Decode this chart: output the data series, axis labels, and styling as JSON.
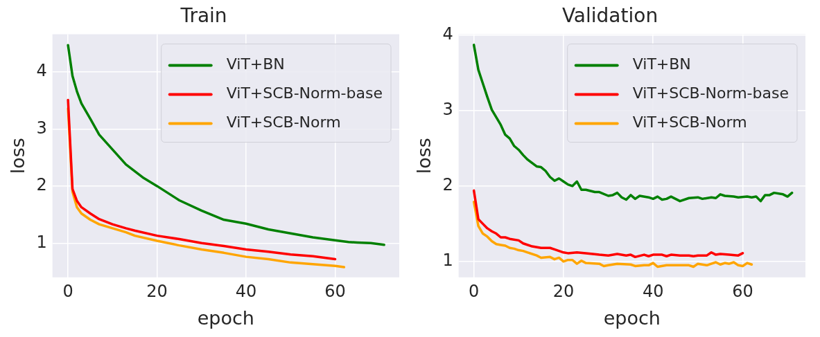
{
  "chart_data": [
    {
      "type": "line",
      "title": "Train",
      "xlabel": "epoch",
      "ylabel": "loss",
      "xlim": [
        -3.5,
        74.4
      ],
      "ylim": [
        0.4,
        4.66
      ],
      "xticks": [
        0,
        20,
        40,
        60
      ],
      "yticks": [
        1,
        2,
        3,
        4
      ],
      "grid": true,
      "legend": "top right",
      "marker": "none",
      "line_style": "solid",
      "series": [
        {
          "name": "ViT+BN",
          "color": "#008000",
          "x": [
            0,
            1,
            2,
            3,
            5,
            7,
            10,
            13,
            17,
            20,
            25,
            30,
            35,
            40,
            45,
            50,
            55,
            60,
            63,
            65,
            68,
            71
          ],
          "values": [
            4.47,
            3.93,
            3.66,
            3.45,
            3.18,
            2.9,
            2.64,
            2.38,
            2.14,
            2.0,
            1.75,
            1.57,
            1.41,
            1.34,
            1.24,
            1.17,
            1.1,
            1.05,
            1.02,
            1.01,
            1.0,
            0.97
          ]
        },
        {
          "name": "ViT+SCB-Norm-base",
          "color": "#ff0000",
          "x": [
            0,
            1,
            2,
            3,
            5,
            7,
            10,
            13,
            15,
            20,
            25,
            30,
            35,
            40,
            45,
            50,
            55,
            60
          ],
          "values": [
            3.51,
            1.95,
            1.74,
            1.63,
            1.52,
            1.42,
            1.33,
            1.26,
            1.22,
            1.13,
            1.07,
            1.0,
            0.95,
            0.89,
            0.85,
            0.8,
            0.77,
            0.72
          ]
        },
        {
          "name": "ViT+SCB-Norm",
          "color": "#ffa500",
          "x": [
            0,
            1,
            2,
            3,
            5,
            7,
            10,
            13,
            15,
            20,
            25,
            30,
            35,
            40,
            45,
            50,
            55,
            60,
            62
          ],
          "values": [
            3.36,
            1.9,
            1.63,
            1.52,
            1.41,
            1.33,
            1.26,
            1.19,
            1.13,
            1.04,
            0.96,
            0.89,
            0.83,
            0.76,
            0.72,
            0.66,
            0.63,
            0.6,
            0.58
          ]
        }
      ]
    },
    {
      "type": "line",
      "title": "Validation",
      "xlabel": "epoch",
      "ylabel": "loss",
      "xlim": [
        -3.4,
        74
      ],
      "ylim": [
        0.79,
        4.01
      ],
      "xticks": [
        0,
        20,
        40,
        60
      ],
      "yticks": [
        1,
        2,
        3,
        4
      ],
      "grid": true,
      "legend": "top right",
      "marker": "none",
      "line_style": "solid",
      "series": [
        {
          "name": "ViT+BN",
          "color": "#008000",
          "x": [
            0,
            1,
            2,
            3,
            4,
            6,
            7,
            8,
            9,
            10,
            11,
            12,
            14,
            15,
            16,
            17,
            18,
            19,
            20,
            21,
            22,
            23,
            24,
            25,
            27,
            28,
            30,
            31,
            32,
            33,
            34,
            35,
            36,
            37,
            39,
            40,
            41,
            42,
            43,
            44,
            46,
            48,
            50,
            51,
            53,
            54,
            55,
            56,
            58,
            59,
            61,
            62,
            63,
            64,
            65,
            66,
            67,
            69,
            70,
            71
          ],
          "values": [
            3.87,
            3.54,
            3.36,
            3.18,
            3.01,
            2.81,
            2.68,
            2.63,
            2.53,
            2.48,
            2.41,
            2.35,
            2.26,
            2.25,
            2.2,
            2.12,
            2.07,
            2.1,
            2.06,
            2.02,
            2.0,
            2.06,
            1.95,
            1.95,
            1.92,
            1.92,
            1.87,
            1.88,
            1.91,
            1.85,
            1.82,
            1.88,
            1.83,
            1.87,
            1.85,
            1.83,
            1.86,
            1.82,
            1.83,
            1.86,
            1.8,
            1.84,
            1.85,
            1.83,
            1.85,
            1.84,
            1.89,
            1.87,
            1.86,
            1.85,
            1.86,
            1.85,
            1.86,
            1.8,
            1.88,
            1.88,
            1.91,
            1.89,
            1.86,
            1.91
          ]
        },
        {
          "name": "ViT+SCB-Norm-base",
          "color": "#ff0000",
          "x": [
            0,
            1,
            2,
            3,
            4,
            5,
            6,
            7,
            8,
            10,
            11,
            13,
            15,
            17,
            18,
            20,
            21,
            23,
            25,
            28,
            30,
            32,
            34,
            35,
            36,
            38,
            39,
            40,
            42,
            43,
            44,
            46,
            48,
            49,
            50,
            52,
            53,
            54,
            55,
            57,
            59,
            60
          ],
          "values": [
            1.94,
            1.56,
            1.5,
            1.44,
            1.4,
            1.37,
            1.32,
            1.32,
            1.3,
            1.28,
            1.24,
            1.2,
            1.18,
            1.18,
            1.16,
            1.12,
            1.11,
            1.12,
            1.11,
            1.09,
            1.08,
            1.1,
            1.08,
            1.09,
            1.06,
            1.09,
            1.07,
            1.09,
            1.09,
            1.07,
            1.09,
            1.08,
            1.08,
            1.07,
            1.08,
            1.08,
            1.12,
            1.09,
            1.1,
            1.09,
            1.08,
            1.11
          ]
        },
        {
          "name": "ViT+SCB-Norm",
          "color": "#ffa500",
          "x": [
            0,
            1,
            2,
            3,
            4,
            5,
            6,
            7,
            8,
            9,
            10,
            11,
            12,
            14,
            15,
            17,
            18,
            19,
            20,
            21,
            22,
            23,
            24,
            25,
            28,
            29,
            30,
            32,
            35,
            36,
            38,
            39,
            40,
            41,
            43,
            45,
            48,
            49,
            50,
            52,
            53,
            54,
            55,
            56,
            57,
            58,
            59,
            60,
            61,
            62
          ],
          "values": [
            1.79,
            1.47,
            1.37,
            1.33,
            1.27,
            1.23,
            1.22,
            1.21,
            1.18,
            1.17,
            1.15,
            1.14,
            1.12,
            1.08,
            1.05,
            1.06,
            1.03,
            1.05,
            1.0,
            1.02,
            1.02,
            0.97,
            1.01,
            0.98,
            0.97,
            0.94,
            0.95,
            0.97,
            0.96,
            0.94,
            0.95,
            0.95,
            0.98,
            0.93,
            0.95,
            0.95,
            0.95,
            0.93,
            0.97,
            0.95,
            0.97,
            0.99,
            0.96,
            0.98,
            0.97,
            0.99,
            0.95,
            0.94,
            0.98,
            0.96
          ]
        }
      ]
    }
  ]
}
